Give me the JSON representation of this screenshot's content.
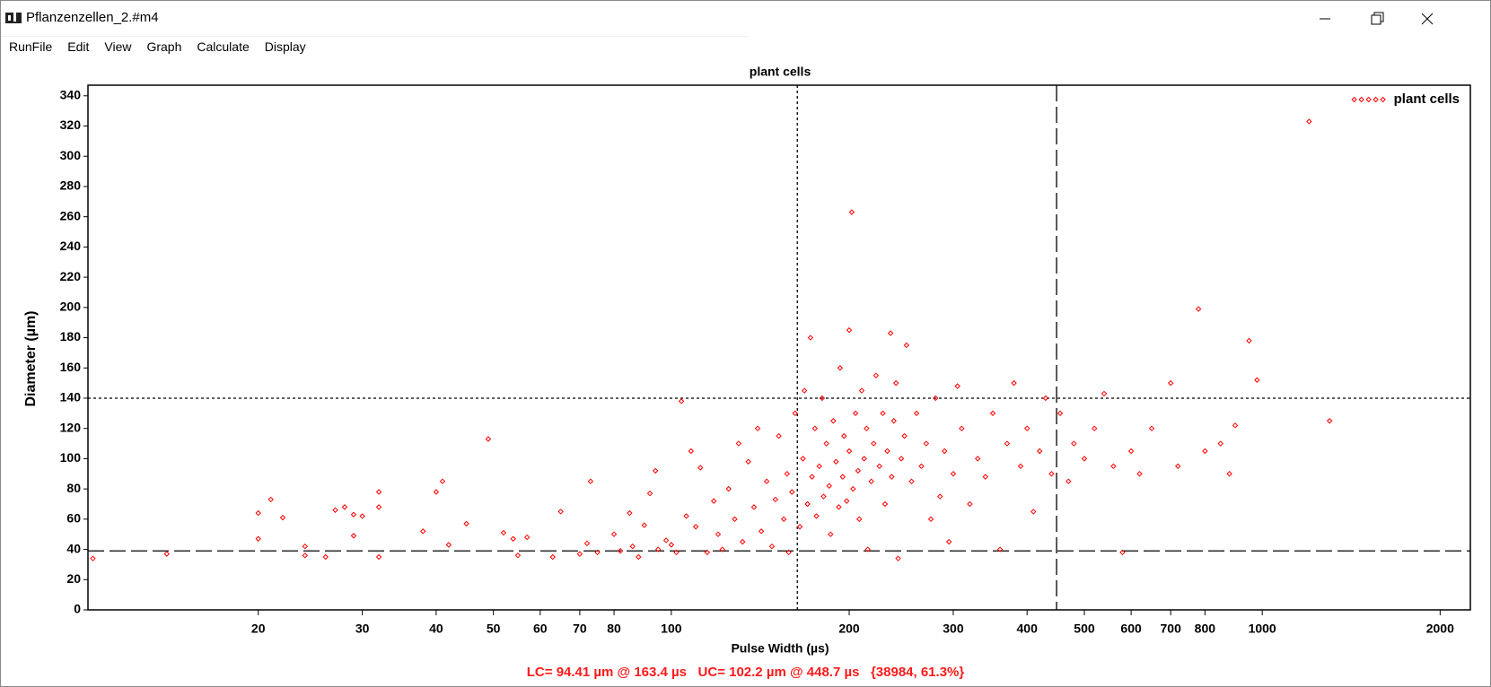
{
  "window": {
    "title": "Pflanzenzellen_2.#m4"
  },
  "menu": [
    "RunFile",
    "Edit",
    "View",
    "Graph",
    "Calculate",
    "Display"
  ],
  "chart_data": {
    "type": "scatter",
    "title": "plant cells",
    "xlabel": "Pulse Width (µs)",
    "ylabel": "Diameter (µm)",
    "xscale": "log",
    "xlim": [
      10.3,
      2250
    ],
    "ylim": [
      0,
      347
    ],
    "xticks": [
      20,
      30,
      40,
      50,
      60,
      70,
      80,
      100,
      200,
      300,
      400,
      500,
      600,
      700,
      800,
      1000,
      2000
    ],
    "yticks": [
      0,
      20,
      40,
      60,
      80,
      100,
      120,
      140,
      160,
      180,
      200,
      220,
      240,
      260,
      280,
      300,
      320,
      340
    ],
    "legend": "upper right",
    "reference_lines": {
      "x": [
        {
          "value": 163.4,
          "style": "dotted"
        },
        {
          "value": 448.7,
          "style": "dashed"
        }
      ],
      "y": [
        {
          "value": 140,
          "style": "dotted"
        },
        {
          "value": 39,
          "style": "dashed"
        }
      ]
    },
    "series": [
      {
        "name": "plant cells",
        "color": "#ff0000",
        "x": [
          10.5,
          14,
          20,
          20,
          21,
          22,
          24,
          24,
          26,
          27,
          28,
          29,
          29,
          30,
          32,
          32,
          32,
          38,
          40,
          41,
          42,
          45,
          49,
          52,
          54,
          55,
          57,
          63,
          65,
          70,
          72,
          73,
          75,
          80,
          82,
          85,
          86,
          88,
          90,
          92,
          94,
          95,
          98,
          100,
          102,
          104,
          106,
          108,
          110,
          112,
          115,
          118,
          120,
          122,
          125,
          128,
          130,
          132,
          135,
          138,
          140,
          142,
          145,
          148,
          150,
          152,
          155,
          157,
          158,
          160,
          162,
          165,
          167,
          168,
          170,
          172,
          173,
          175,
          176,
          178,
          180,
          181,
          183,
          185,
          186,
          188,
          190,
          192,
          193,
          195,
          196,
          198,
          200,
          200,
          202,
          203,
          205,
          207,
          208,
          210,
          212,
          214,
          215,
          218,
          220,
          222,
          225,
          228,
          230,
          232,
          235,
          236,
          238,
          240,
          242,
          245,
          248,
          250,
          255,
          260,
          265,
          270,
          275,
          280,
          285,
          290,
          295,
          300,
          305,
          310,
          320,
          330,
          340,
          350,
          360,
          370,
          380,
          390,
          400,
          410,
          420,
          430,
          440,
          455,
          470,
          480,
          500,
          520,
          540,
          560,
          580,
          600,
          620,
          650,
          700,
          720,
          780,
          800,
          850,
          880,
          900,
          950,
          980,
          1200,
          1300
        ],
        "y": [
          34,
          37,
          47,
          64,
          73,
          61,
          42,
          36,
          35,
          66,
          68,
          49,
          63,
          62,
          68,
          78,
          35,
          52,
          78,
          85,
          43,
          57,
          113,
          51,
          47,
          36,
          48,
          35,
          65,
          37,
          44,
          85,
          38,
          50,
          39,
          64,
          42,
          35,
          56,
          77,
          92,
          40,
          46,
          43,
          38,
          138,
          62,
          105,
          55,
          94,
          38,
          72,
          50,
          40,
          80,
          60,
          110,
          45,
          98,
          68,
          120,
          52,
          85,
          42,
          73,
          115,
          60,
          90,
          38,
          78,
          130,
          55,
          100,
          145,
          70,
          180,
          88,
          120,
          62,
          95,
          140,
          75,
          110,
          82,
          50,
          125,
          98,
          68,
          160,
          88,
          115,
          72,
          185,
          105,
          263,
          80,
          130,
          92,
          60,
          145,
          100,
          120,
          40,
          85,
          110,
          155,
          95,
          130,
          70,
          105,
          183,
          88,
          125,
          150,
          34,
          100,
          115,
          175,
          85,
          130,
          95,
          110,
          60,
          140,
          75,
          105,
          45,
          90,
          148,
          120,
          70,
          100,
          88,
          130,
          40,
          110,
          150,
          95,
          120,
          65,
          105,
          140,
          90,
          130,
          85,
          110,
          100,
          120,
          143,
          95,
          38,
          105,
          90,
          120,
          150,
          95,
          199,
          105,
          110,
          90,
          122,
          178,
          152,
          323,
          125
        ]
      }
    ]
  },
  "status": "LC= 94.41 µm @ 163.4 µs   UC= 102.2 µm @ 448.7 µs   {38984, 61.3%}"
}
